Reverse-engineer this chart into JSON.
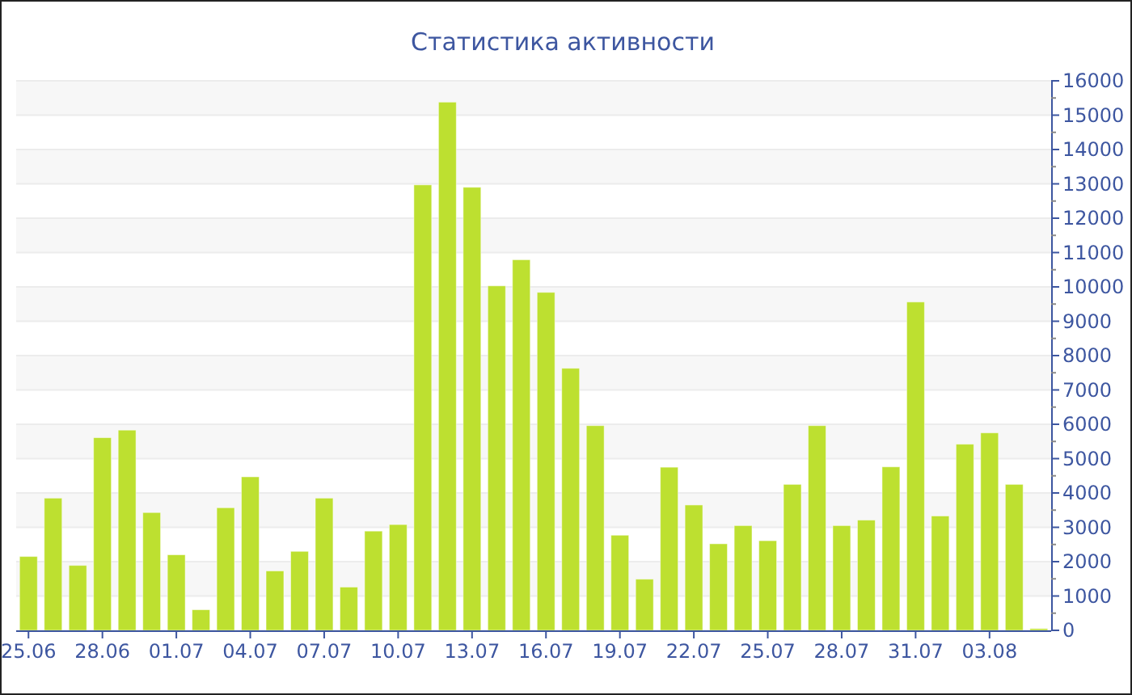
{
  "chart_data": {
    "type": "bar",
    "title": "Статистика активности",
    "categories": [
      "25.06",
      null,
      null,
      "28.06",
      null,
      null,
      "01.07",
      null,
      null,
      "04.07",
      null,
      null,
      "07.07",
      null,
      null,
      "10.07",
      null,
      null,
      "13.07",
      null,
      null,
      "16.07",
      null,
      null,
      "19.07",
      null,
      null,
      "22.07",
      null,
      null,
      "25.07",
      null,
      null,
      "28.07",
      null,
      null,
      "31.07",
      null,
      null,
      "03.08",
      null,
      null
    ],
    "values": [
      2150,
      3850,
      1890,
      5610,
      5830,
      3430,
      2200,
      600,
      3570,
      4470,
      1730,
      2300,
      3850,
      1260,
      2890,
      3080,
      12970,
      15380,
      12900,
      10030,
      10790,
      9840,
      7630,
      5960,
      2770,
      1490,
      4750,
      3650,
      2520,
      3050,
      2610,
      4250,
      5960,
      3050,
      3210,
      4760,
      9560,
      3330,
      5420,
      5750,
      4250,
      50
    ],
    "color": "#bde030",
    "ylim": [
      0,
      16000
    ],
    "yticks": [
      0,
      {
        "value": 500,
        "label": null
      },
      1000,
      {
        "value": 1500,
        "label": null
      },
      2000,
      {
        "value": 2500,
        "label": null
      },
      3000,
      {
        "value": 3500,
        "label": null
      },
      4000,
      {
        "value": 4500,
        "label": null
      },
      5000,
      {
        "value": 5500,
        "label": null
      },
      6000,
      {
        "value": 6500,
        "label": null
      },
      7000,
      {
        "value": 7500,
        "label": null
      },
      8000,
      {
        "value": 8500,
        "label": null
      },
      9000,
      {
        "value": 9500,
        "label": null
      },
      10000,
      {
        "value": 10500,
        "label": null
      },
      11000,
      {
        "value": 11500,
        "label": null
      },
      12000,
      {
        "value": 12500,
        "label": null
      },
      13000,
      {
        "value": 13500,
        "label": null
      },
      14000,
      {
        "value": 14500,
        "label": null
      },
      15000,
      {
        "value": 15500,
        "label": null
      },
      16000
    ],
    "grid": "y"
  }
}
